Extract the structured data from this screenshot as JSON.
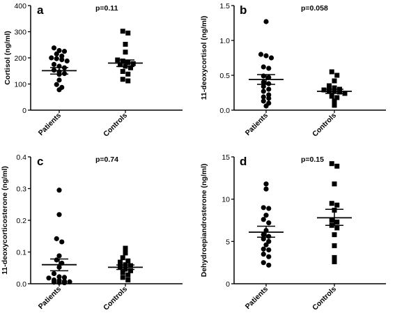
{
  "chart_data": [
    {
      "type": "scatter",
      "panel": "a",
      "annotation": "p=0.11",
      "ylabel": "Cortisol (ng/ml)",
      "ylim": [
        0,
        400
      ],
      "yticks": [
        "0",
        "100",
        "200",
        "300",
        "400"
      ],
      "categories": [
        "Patients",
        "Controls"
      ],
      "series": [
        {
          "marker": "circle",
          "category": "Patients",
          "mean": 151,
          "sem_low": 138,
          "sem_high": 163,
          "values": [
            238,
            228,
            225,
            215,
            207,
            200,
            197,
            193,
            188,
            175,
            168,
            162,
            153,
            147,
            140,
            137,
            115,
            98,
            87,
            78
          ]
        },
        {
          "marker": "square",
          "category": "Controls",
          "mean": 180,
          "sem_low": 167,
          "sem_high": 192,
          "values": [
            302,
            295,
            252,
            222,
            192,
            188,
            182,
            178,
            174,
            168,
            162,
            148,
            138,
            118,
            112
          ]
        }
      ]
    },
    {
      "type": "scatter",
      "panel": "b",
      "annotation": "p=0.058",
      "ylabel": "11-deoxycortisol (ng/ml)",
      "ylim": [
        0,
        1.5
      ],
      "yticks": [
        "0.0",
        "0.5",
        "1.0",
        "1.5"
      ],
      "categories": [
        "Patients",
        "Controls"
      ],
      "series": [
        {
          "marker": "circle",
          "category": "Patients",
          "mean": 0.44,
          "sem_low": 0.37,
          "sem_high": 0.51,
          "values": [
            1.27,
            0.8,
            0.78,
            0.75,
            0.62,
            0.6,
            0.49,
            0.47,
            0.4,
            0.38,
            0.34,
            0.3,
            0.27,
            0.22,
            0.19,
            0.17,
            0.13,
            0.1,
            0.06
          ]
        },
        {
          "marker": "square",
          "category": "Controls",
          "mean": 0.27,
          "sem_low": 0.24,
          "sem_high": 0.3,
          "values": [
            0.55,
            0.5,
            0.42,
            0.35,
            0.32,
            0.3,
            0.29,
            0.28,
            0.27,
            0.26,
            0.24,
            0.2,
            0.18,
            0.13,
            0.07
          ]
        }
      ]
    },
    {
      "type": "scatter",
      "panel": "c",
      "annotation": "p=0.74",
      "ylabel": "11-deoxycorticosterone (ng/ml)",
      "ylim": [
        0,
        0.4
      ],
      "yticks": [
        "0.0",
        "0.1",
        "0.2",
        "0.3",
        "0.4"
      ],
      "categories": [
        "Patients",
        "Controls"
      ],
      "series": [
        {
          "marker": "circle",
          "category": "Patients",
          "mean": 0.06,
          "sem_low": 0.041,
          "sem_high": 0.078,
          "values": [
            0.295,
            0.218,
            0.142,
            0.132,
            0.088,
            0.075,
            0.065,
            0.052,
            0.032,
            0.022,
            0.02,
            0.018,
            0.012,
            0.01,
            0.008,
            0.006,
            0.005,
            0.004,
            0.003
          ]
        },
        {
          "marker": "square",
          "category": "Controls",
          "mean": 0.052,
          "sem_low": 0.045,
          "sem_high": 0.059,
          "values": [
            0.112,
            0.097,
            0.082,
            0.072,
            0.068,
            0.06,
            0.057,
            0.052,
            0.046,
            0.041,
            0.036,
            0.028,
            0.02,
            0.012
          ]
        }
      ]
    },
    {
      "type": "scatter",
      "panel": "d",
      "annotation": "p=0.15",
      "ylabel": "Dehydroepiandrosterone (ng/ml)",
      "ylim": [
        0,
        15
      ],
      "yticks": [
        "0",
        "5",
        "10",
        "15"
      ],
      "categories": [
        "Patients",
        "Controls"
      ],
      "series": [
        {
          "marker": "circle",
          "category": "Patients",
          "mean": 6.1,
          "sem_low": 5.5,
          "sem_high": 6.8,
          "values": [
            11.8,
            11.2,
            9.0,
            8.9,
            8.1,
            7.6,
            7.2,
            6.3,
            5.8,
            5.6,
            5.3,
            5.0,
            4.6,
            4.1,
            4.0,
            3.5,
            3.2,
            2.5,
            2.2
          ]
        },
        {
          "marker": "square",
          "category": "Controls",
          "mean": 7.8,
          "sem_low": 6.9,
          "sem_high": 8.8,
          "values": [
            14.2,
            13.9,
            11.8,
            9.5,
            9.3,
            8.7,
            7.5,
            7.3,
            6.9,
            6.6,
            5.8,
            4.5,
            3.1,
            2.6
          ]
        }
      ]
    }
  ]
}
